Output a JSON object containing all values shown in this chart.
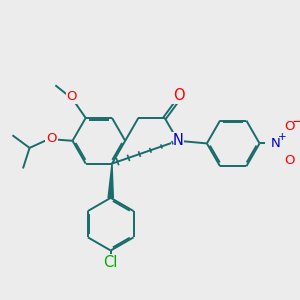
{
  "bg_color": "#ececec",
  "bond_color": "#1a6b6b",
  "bond_width": 1.4,
  "atom_colors": {
    "O": "#ff0000",
    "N": "#0000cc",
    "Cl": "#00aa00",
    "C": "#1a6b6b"
  },
  "font_size": 9.5,
  "fig_size": [
    3.0,
    3.0
  ],
  "dpi": 100,
  "scale": 1.0
}
